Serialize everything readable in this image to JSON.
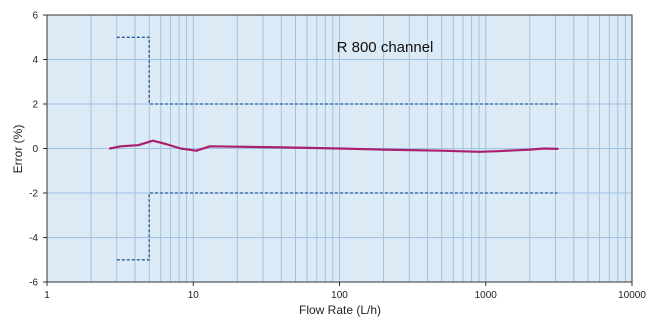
{
  "chart_data": {
    "type": "line",
    "annotation": "R 800 channel",
    "xlabel": "Flow Rate (L/h)",
    "ylabel": "Error (%)",
    "x_scale": "log",
    "xlim": [
      1,
      10000
    ],
    "ylim": [
      -6,
      6
    ],
    "x_ticks": [
      1,
      10,
      100,
      1000,
      10000
    ],
    "x_tick_labels": [
      "1",
      "10",
      "100",
      "1000",
      "10000"
    ],
    "y_ticks": [
      -6,
      -4,
      -2,
      0,
      2,
      4,
      6
    ],
    "y_tick_labels": [
      "-6",
      "-4",
      "-2",
      "0",
      "2",
      "4",
      "6"
    ],
    "grid": true,
    "colors": {
      "plot_background": "#dceaf6",
      "grid": "#9fc3e4",
      "series": "#a8206e",
      "limits": "#2a5d9a"
    },
    "series": [
      {
        "x": [
          2.7,
          3.2,
          4.2,
          5.3,
          6.5,
          8.2,
          10.5,
          13,
          20,
          40,
          100,
          200,
          500,
          900,
          1200,
          1600,
          2000,
          2500,
          3100
        ],
        "y": [
          0.0,
          0.1,
          0.15,
          0.35,
          0.2,
          0.0,
          -0.1,
          0.1,
          0.08,
          0.05,
          0.0,
          -0.05,
          -0.1,
          -0.15,
          -0.12,
          -0.08,
          -0.05,
          0.0,
          -0.02
        ]
      }
    ],
    "limit_lines": [
      {
        "x": [
          3,
          5,
          5,
          3100
        ],
        "y": [
          5,
          5,
          2,
          2
        ]
      },
      {
        "x": [
          3,
          5,
          5,
          3100
        ],
        "y": [
          -5,
          -5,
          -2,
          -2
        ]
      }
    ]
  }
}
